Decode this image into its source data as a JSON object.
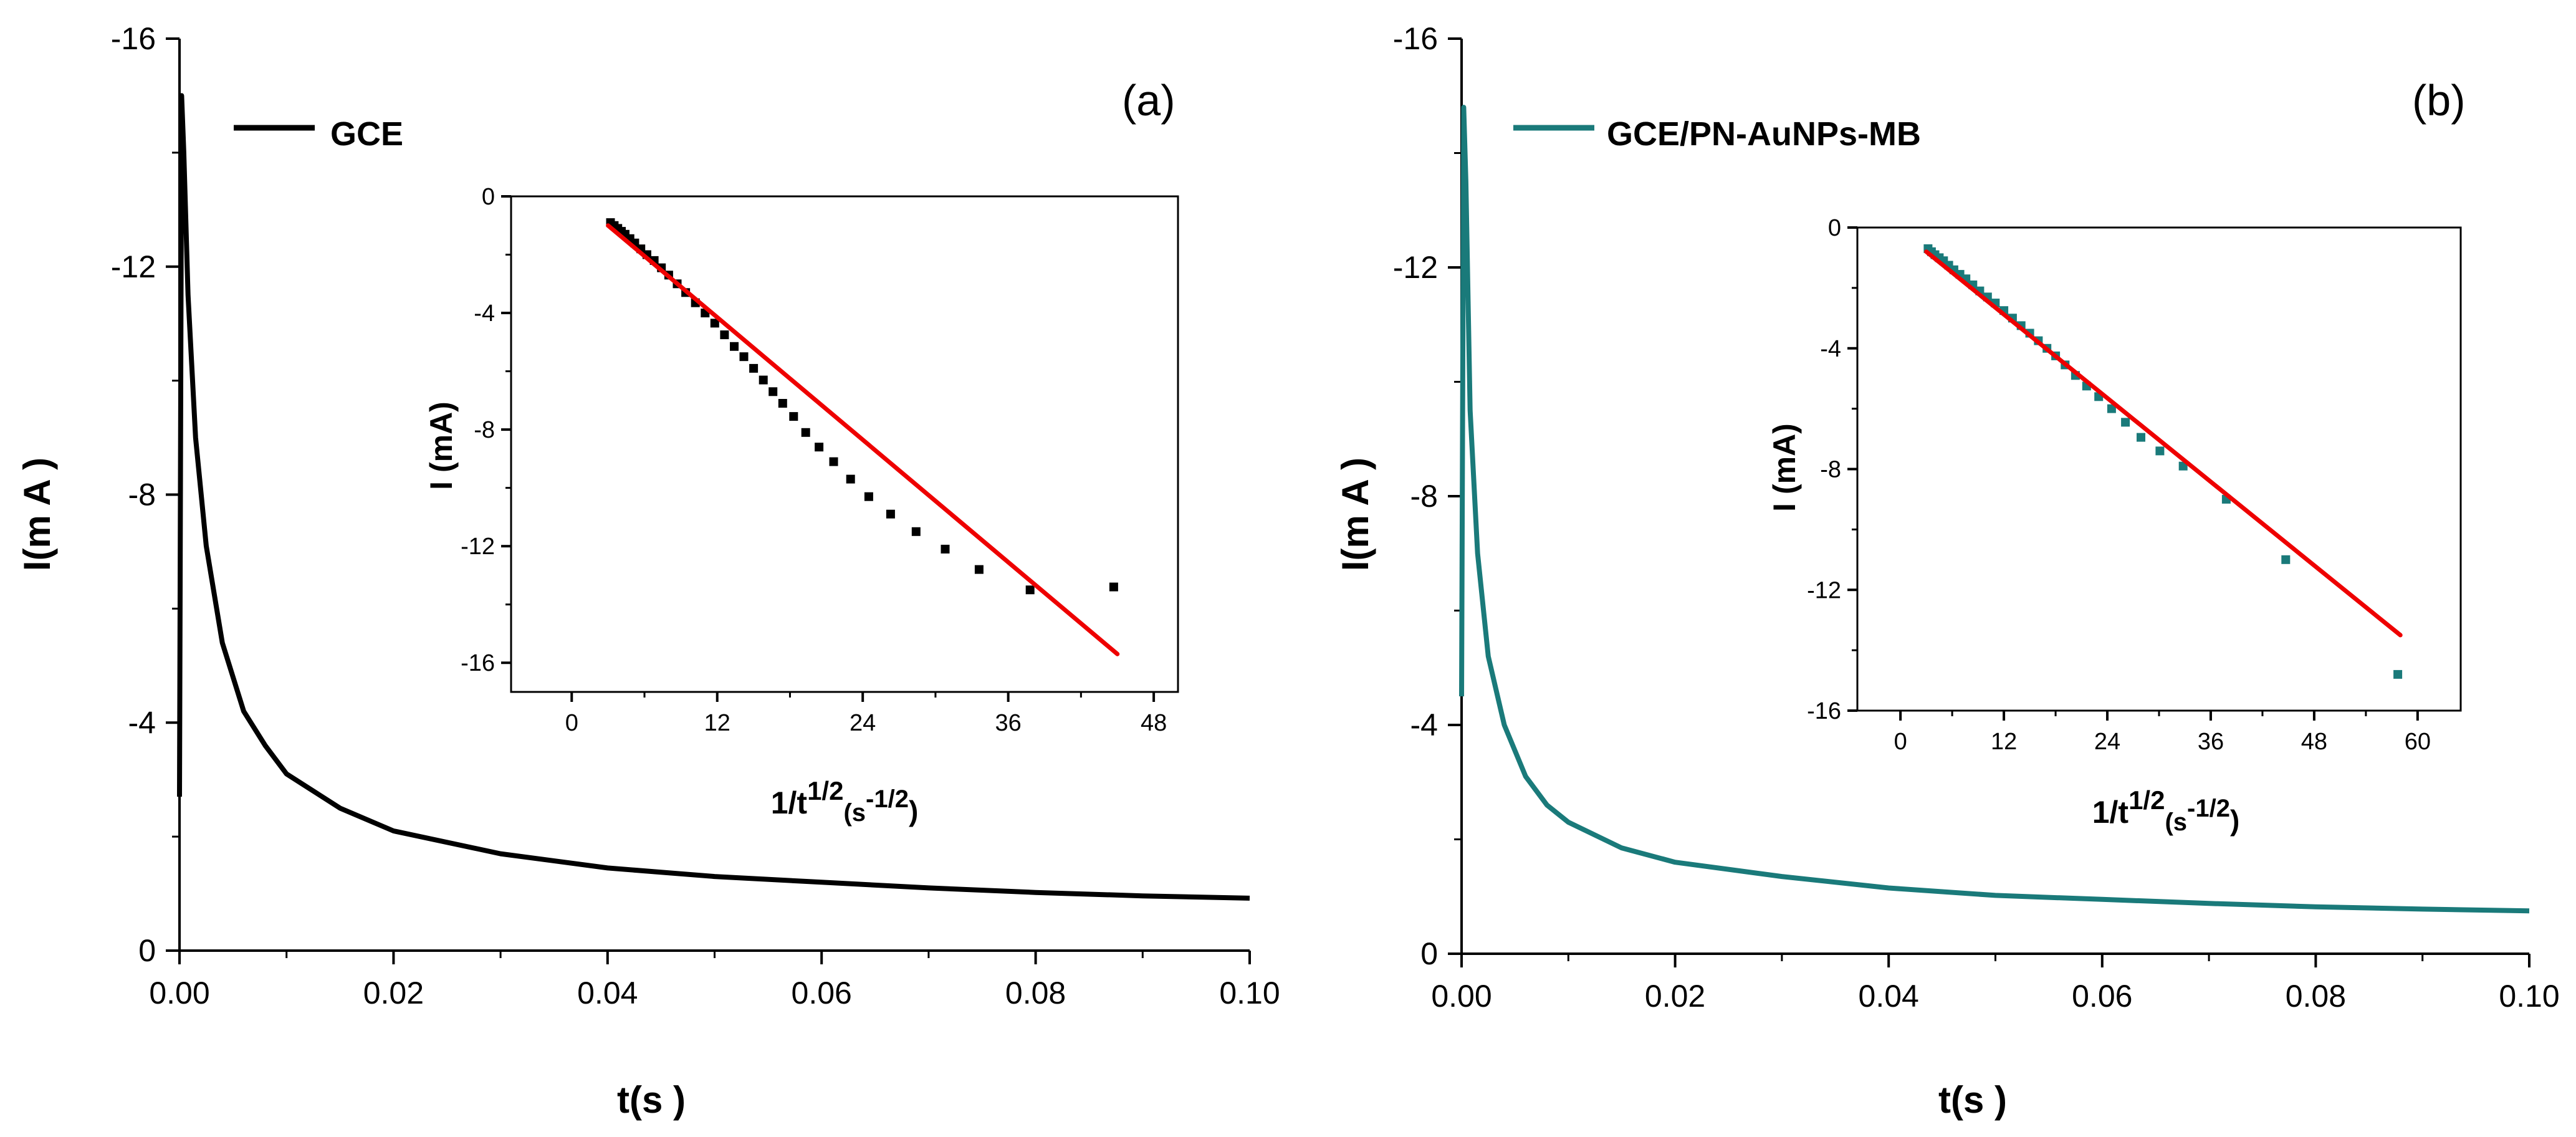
{
  "chart_data": [
    {
      "type": "line",
      "panel": "(a)",
      "title": "",
      "xlabel": "t(s )",
      "ylabel": "I(m A )",
      "xlim": [
        0,
        0.1
      ],
      "ylim": [
        0,
        -16
      ],
      "xticks": [
        "0.00",
        "0.02",
        "0.04",
        "0.06",
        "0.08",
        "0.10"
      ],
      "yticks": [
        "0",
        "-4",
        "-8",
        "-12",
        "-16"
      ],
      "legend": "top-left",
      "series": [
        {
          "name": "GCE",
          "color": "#000000",
          "x": [
            0,
            0.0002,
            0.0004,
            0.0008,
            0.0015,
            0.0025,
            0.004,
            0.006,
            0.008,
            0.01,
            0.015,
            0.02,
            0.03,
            0.04,
            0.05,
            0.06,
            0.07,
            0.08,
            0.09,
            0.1
          ],
          "y": [
            -2.7,
            -15.0,
            -14.0,
            -11.5,
            -9.0,
            -7.1,
            -5.4,
            -4.2,
            -3.6,
            -3.1,
            -2.5,
            -2.1,
            -1.7,
            -1.45,
            -1.3,
            -1.2,
            -1.1,
            -1.02,
            -0.96,
            -0.92
          ]
        }
      ],
      "inset": {
        "type": "scatter",
        "xlabel_main": "1/t",
        "xlabel_sup": "1/2",
        "xlabel_unit": "(s",
        "xlabel_unit_sup": "-1/2",
        "xlabel_close": ")",
        "ylabel": "I (mA)",
        "xlim": [
          -5,
          50
        ],
        "ylim": [
          -17,
          0
        ],
        "xticks": [
          "0",
          "12",
          "24",
          "36",
          "48"
        ],
        "yticks": [
          "0",
          "-4",
          "-8",
          "-12",
          "-16"
        ],
        "points": {
          "color": "#000000",
          "x": [
            3.2,
            3.5,
            3.8,
            4.1,
            4.4,
            4.8,
            5.2,
            5.7,
            6.2,
            6.8,
            7.4,
            8.0,
            8.7,
            9.4,
            10.2,
            11.0,
            11.8,
            12.6,
            13.4,
            14.2,
            15.0,
            15.8,
            16.6,
            17.4,
            18.3,
            19.3,
            20.4,
            21.6,
            23.0,
            24.5,
            26.3,
            28.4,
            30.8,
            33.6,
            37.8,
            44.7
          ],
          "y": [
            -0.9,
            -1.0,
            -1.1,
            -1.2,
            -1.3,
            -1.45,
            -1.6,
            -1.8,
            -2.0,
            -2.2,
            -2.45,
            -2.7,
            -3.0,
            -3.3,
            -3.65,
            -4.0,
            -4.35,
            -4.75,
            -5.15,
            -5.5,
            -5.9,
            -6.3,
            -6.7,
            -7.1,
            -7.55,
            -8.1,
            -8.6,
            -9.1,
            -9.7,
            -10.3,
            -10.9,
            -11.5,
            -12.1,
            -12.8,
            -13.5,
            -13.4
          ]
        },
        "fit_line": {
          "color": "#ee0000",
          "x": [
            3.0,
            45.0
          ],
          "y": [
            -1.0,
            -15.7
          ]
        }
      }
    },
    {
      "type": "line",
      "panel": "(b)",
      "title": "",
      "xlabel": "t(s )",
      "ylabel": "I(m A )",
      "xlim": [
        0,
        0.1
      ],
      "ylim": [
        0,
        -16
      ],
      "xticks": [
        "0.00",
        "0.02",
        "0.04",
        "0.06",
        "0.08",
        "0.10"
      ],
      "yticks": [
        "0",
        "-4",
        "-8",
        "-12",
        "-16"
      ],
      "legend": "top-left",
      "series": [
        {
          "name": "GCE/PN-AuNPs-MB",
          "color": "#1a7a7a",
          "x": [
            0,
            0.0002,
            0.0004,
            0.0008,
            0.0015,
            0.0025,
            0.004,
            0.006,
            0.008,
            0.01,
            0.015,
            0.02,
            0.03,
            0.04,
            0.05,
            0.06,
            0.07,
            0.08,
            0.09,
            0.1
          ],
          "y": [
            -4.5,
            -14.8,
            -13.5,
            -9.5,
            -7.0,
            -5.2,
            -4.0,
            -3.1,
            -2.6,
            -2.3,
            -1.85,
            -1.6,
            -1.35,
            -1.15,
            -1.02,
            -0.95,
            -0.88,
            -0.82,
            -0.78,
            -0.75
          ]
        }
      ],
      "inset": {
        "type": "scatter",
        "xlabel_main": "1/t",
        "xlabel_sup": "1/2",
        "xlabel_unit": "(s",
        "xlabel_unit_sup": "-1/2",
        "xlabel_close": ")",
        "ylabel": "I (mA)",
        "xlim": [
          -5,
          65
        ],
        "ylim": [
          -16,
          0
        ],
        "xticks": [
          "0",
          "12",
          "24",
          "36",
          "48",
          "60"
        ],
        "yticks": [
          "0",
          "-4",
          "-8",
          "-12",
          "-16"
        ],
        "points": {
          "color": "#1a7a7a",
          "x": [
            3.2,
            3.6,
            4.0,
            4.5,
            5.0,
            5.6,
            6.2,
            6.9,
            7.6,
            8.4,
            9.2,
            10.1,
            11.0,
            12.0,
            13.0,
            14.0,
            15.0,
            16.0,
            17.0,
            18.0,
            19.1,
            20.3,
            21.6,
            23.0,
            24.5,
            26.1,
            27.9,
            30.1,
            32.8,
            37.8,
            44.7,
            57.7
          ],
          "y": [
            -0.7,
            -0.8,
            -0.9,
            -1.0,
            -1.1,
            -1.25,
            -1.4,
            -1.55,
            -1.7,
            -1.9,
            -2.1,
            -2.3,
            -2.5,
            -2.75,
            -3.0,
            -3.25,
            -3.5,
            -3.75,
            -4.0,
            -4.25,
            -4.55,
            -4.9,
            -5.25,
            -5.6,
            -6.0,
            -6.45,
            -6.95,
            -7.4,
            -7.9,
            -9.0,
            -11.0,
            -14.8
          ]
        },
        "fit_line": {
          "color": "#ee0000",
          "x": [
            3.0,
            58.0
          ],
          "y": [
            -0.8,
            -13.5
          ]
        }
      }
    }
  ]
}
